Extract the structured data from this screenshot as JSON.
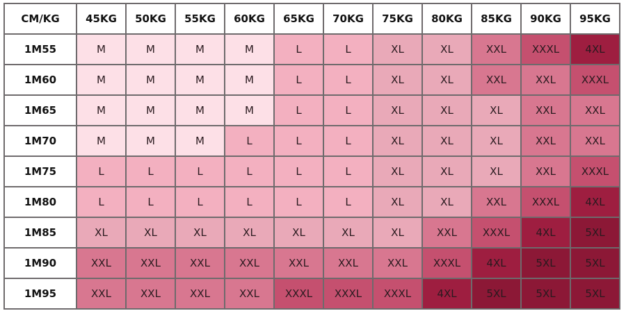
{
  "header": [
    "CM/KG",
    "45KG",
    "50KG",
    "55KG",
    "60KG",
    "65KG",
    "70KG",
    "75KG",
    "80KG",
    "85KG",
    "90KG",
    "95KG"
  ],
  "rows": [
    {
      "height": "1M55",
      "sizes": [
        "M",
        "M",
        "M",
        "M",
        "L",
        "L",
        "XL",
        "XL",
        "XXL",
        "XXXL",
        "4XL"
      ]
    },
    {
      "height": "1M60",
      "sizes": [
        "M",
        "M",
        "M",
        "M",
        "L",
        "L",
        "XL",
        "XL",
        "XXL",
        "XXL",
        "XXXL"
      ]
    },
    {
      "height": "1M65",
      "sizes": [
        "M",
        "M",
        "M",
        "M",
        "L",
        "L",
        "XL",
        "XL",
        "XL",
        "XXL",
        "XXL"
      ]
    },
    {
      "height": "1M70",
      "sizes": [
        "M",
        "M",
        "M",
        "L",
        "L",
        "L",
        "XL",
        "XL",
        "XL",
        "XXL",
        "XXL"
      ]
    },
    {
      "height": "1M75",
      "sizes": [
        "L",
        "L",
        "L",
        "L",
        "L",
        "L",
        "XL",
        "XL",
        "XL",
        "XXL",
        "XXXL"
      ]
    },
    {
      "height": "1M80",
      "sizes": [
        "L",
        "L",
        "L",
        "L",
        "L",
        "L",
        "XL",
        "XL",
        "XXL",
        "XXXL",
        "4XL"
      ]
    },
    {
      "height": "1M85",
      "sizes": [
        "XL",
        "XL",
        "XL",
        "XL",
        "XL",
        "XL",
        "XL",
        "XXL",
        "XXXL",
        "4XL",
        "5XL"
      ]
    },
    {
      "height": "1M90",
      "sizes": [
        "XXL",
        "XXL",
        "XXL",
        "XXL",
        "XXL",
        "XXL",
        "XXL",
        "XXXL",
        "4XL",
        "5XL",
        "5XL"
      ]
    },
    {
      "height": "1M95",
      "sizes": [
        "XXL",
        "XXL",
        "XXL",
        "XXL",
        "XXXL",
        "XXXL",
        "XXXL",
        "4XL",
        "5XL",
        "5XL",
        "5XL"
      ]
    }
  ],
  "size_colors": {
    "M": "#fde0e7",
    "L": "#f3b0c0",
    "XL": "#e9a9b8",
    "XXL": "#d87790",
    "XXXL": "#c5506f",
    "4XL": "#9e1e40",
    "5XL": "#8c1836"
  }
}
